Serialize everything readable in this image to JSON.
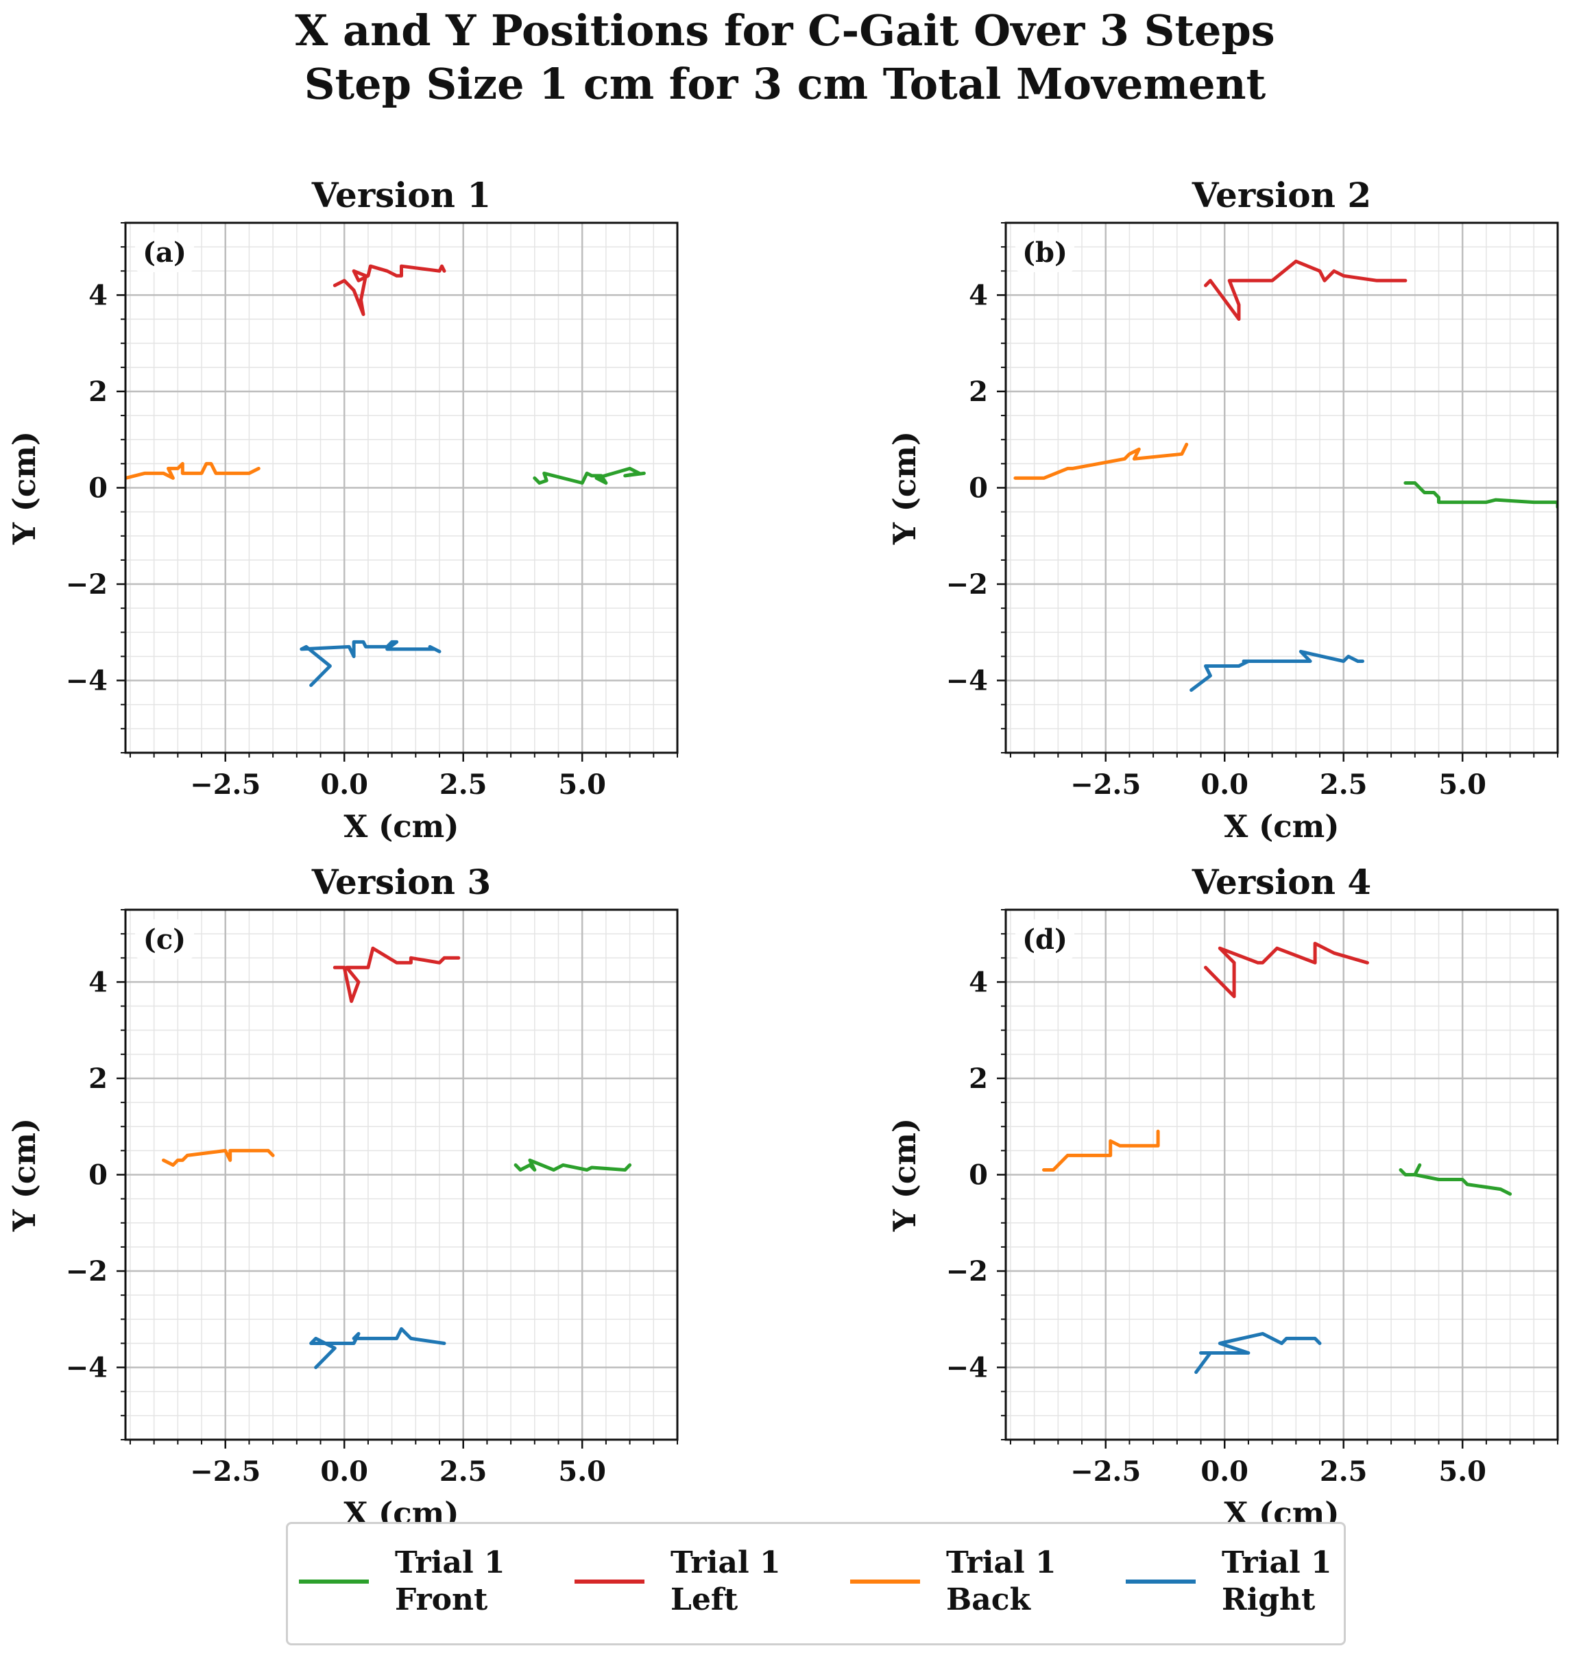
{
  "figure": {
    "title_line1": "X and Y Positions for C-Gait Over 3 Steps",
    "title_line2": "Step Size 1 cm for 3 cm Total Movement"
  },
  "colors": {
    "front": "#2ca02c",
    "left": "#d62728",
    "back": "#ff7f0e",
    "right": "#1f77b4"
  },
  "legend": {
    "placement": "bottom-center",
    "items": [
      {
        "line1": "Trial 1",
        "line2": "Front",
        "color": "#2ca02c"
      },
      {
        "line1": "Trial 1",
        "line2": "Left",
        "color": "#d62728"
      },
      {
        "line1": "Trial 1",
        "line2": "Back",
        "color": "#ff7f0e"
      },
      {
        "line1": "Trial 1",
        "line2": "Right",
        "color": "#1f77b4"
      }
    ]
  },
  "chart_data": [
    {
      "type": "line",
      "title": "Version 1",
      "panel_label": "(a)",
      "xlabel": "X (cm)",
      "ylabel": "Y (cm)",
      "xlim": [
        -4.6,
        7.0
      ],
      "ylim": [
        -5.5,
        5.5
      ],
      "xticks": [
        -2.5,
        0.0,
        2.5,
        5.0
      ],
      "xtick_labels": [
        "−2.5",
        "0.0",
        "2.5",
        "5.0"
      ],
      "yticks": [
        -4,
        -2,
        0,
        2,
        4
      ],
      "ytick_labels": [
        "−4",
        "−2",
        "0",
        "2",
        "4"
      ],
      "grid": true,
      "series": [
        {
          "key": "front",
          "x": [
            4.0,
            4.1,
            4.25,
            4.2,
            5.0,
            5.1,
            5.2,
            5.4,
            5.5,
            5.3,
            6.0,
            6.2,
            5.9,
            6.3
          ],
          "y": [
            0.2,
            0.1,
            0.15,
            0.3,
            0.1,
            0.3,
            0.25,
            0.25,
            0.1,
            0.2,
            0.4,
            0.3,
            0.25,
            0.3
          ]
        },
        {
          "key": "left",
          "x": [
            -0.2,
            0.0,
            0.2,
            0.4,
            0.35,
            0.45,
            0.2,
            0.3,
            0.5,
            0.55,
            0.9,
            1.1,
            1.2,
            1.2,
            2.0,
            2.05,
            2.1
          ],
          "y": [
            4.2,
            4.3,
            4.1,
            3.6,
            3.9,
            4.4,
            4.5,
            4.3,
            4.4,
            4.6,
            4.5,
            4.4,
            4.4,
            4.6,
            4.5,
            4.6,
            4.5
          ]
        },
        {
          "key": "back",
          "x": [
            -4.6,
            -4.2,
            -3.8,
            -3.6,
            -3.7,
            -3.5,
            -3.4,
            -3.4,
            -3.0,
            -2.9,
            -2.8,
            -2.7,
            -2.0,
            -1.8
          ],
          "y": [
            0.2,
            0.3,
            0.3,
            0.2,
            0.4,
            0.4,
            0.5,
            0.3,
            0.3,
            0.5,
            0.5,
            0.3,
            0.3,
            0.4
          ]
        },
        {
          "key": "right",
          "x": [
            -0.7,
            -0.3,
            -0.8,
            -0.9,
            0.1,
            0.2,
            0.2,
            0.4,
            0.45,
            0.9,
            1.0,
            1.1,
            0.9,
            1.9,
            1.8,
            2.0
          ],
          "y": [
            -4.1,
            -3.7,
            -3.3,
            -3.35,
            -3.3,
            -3.5,
            -3.2,
            -3.2,
            -3.3,
            -3.3,
            -3.2,
            -3.2,
            -3.35,
            -3.35,
            -3.3,
            -3.4
          ]
        }
      ]
    },
    {
      "type": "line",
      "title": "Version 2",
      "panel_label": "(b)",
      "xlabel": "X (cm)",
      "ylabel": "Y (cm)",
      "xlim": [
        -4.6,
        7.0
      ],
      "ylim": [
        -5.5,
        5.5
      ],
      "xticks": [
        -2.5,
        0.0,
        2.5,
        5.0
      ],
      "xtick_labels": [
        "−2.5",
        "0.0",
        "2.5",
        "5.0"
      ],
      "yticks": [
        -4,
        -2,
        0,
        2,
        4
      ],
      "ytick_labels": [
        "−4",
        "−2",
        "0",
        "2",
        "4"
      ],
      "grid": true,
      "series": [
        {
          "key": "front",
          "x": [
            3.8,
            4.0,
            4.2,
            4.4,
            4.5,
            4.5,
            4.8,
            5.5,
            5.7,
            6.5,
            7.0,
            7.0
          ],
          "y": [
            0.1,
            0.1,
            -0.1,
            -0.1,
            -0.2,
            -0.3,
            -0.3,
            -0.3,
            -0.25,
            -0.3,
            -0.3,
            -0.4
          ]
        },
        {
          "key": "left",
          "x": [
            -0.4,
            -0.3,
            0.3,
            0.3,
            0.1,
            0.5,
            0.9,
            1.0,
            1.5,
            2.0,
            2.1,
            2.3,
            2.5,
            3.2,
            3.8
          ],
          "y": [
            4.2,
            4.3,
            3.5,
            3.8,
            4.3,
            4.3,
            4.3,
            4.3,
            4.7,
            4.5,
            4.3,
            4.5,
            4.4,
            4.3,
            4.3
          ]
        },
        {
          "key": "back",
          "x": [
            -4.4,
            -3.8,
            -3.3,
            -3.2,
            -2.1,
            -2.0,
            -1.8,
            -1.9,
            -0.9,
            -0.8
          ],
          "y": [
            0.2,
            0.2,
            0.4,
            0.4,
            0.6,
            0.7,
            0.8,
            0.6,
            0.7,
            0.9
          ]
        },
        {
          "key": "right",
          "x": [
            -0.7,
            -0.3,
            -0.4,
            0.3,
            0.5,
            0.4,
            1.8,
            1.6,
            2.5,
            2.6,
            2.8,
            2.9
          ],
          "y": [
            -4.2,
            -3.9,
            -3.7,
            -3.7,
            -3.6,
            -3.6,
            -3.6,
            -3.4,
            -3.6,
            -3.5,
            -3.6,
            -3.6
          ]
        }
      ]
    },
    {
      "type": "line",
      "title": "Version 3",
      "panel_label": "(c)",
      "xlabel": "X (cm)",
      "ylabel": "Y (cm)",
      "xlim": [
        -4.6,
        7.0
      ],
      "ylim": [
        -5.5,
        5.5
      ],
      "xticks": [
        -2.5,
        0.0,
        2.5,
        5.0
      ],
      "xtick_labels": [
        "−2.5",
        "0.0",
        "2.5",
        "5.0"
      ],
      "yticks": [
        -4,
        -2,
        0,
        2,
        4
      ],
      "ytick_labels": [
        "−4",
        "−2",
        "0",
        "2",
        "4"
      ],
      "grid": true,
      "series": [
        {
          "key": "front",
          "x": [
            3.6,
            3.7,
            3.9,
            4.0,
            3.9,
            4.4,
            4.6,
            5.1,
            5.2,
            5.9,
            6.0
          ],
          "y": [
            0.2,
            0.1,
            0.2,
            0.1,
            0.3,
            0.1,
            0.2,
            0.1,
            0.15,
            0.1,
            0.2
          ]
        },
        {
          "key": "left",
          "x": [
            -0.2,
            0.0,
            0.15,
            0.3,
            0.05,
            0.5,
            0.6,
            1.1,
            1.4,
            1.4,
            2.0,
            2.1,
            2.4
          ],
          "y": [
            4.3,
            4.3,
            3.6,
            4.0,
            4.3,
            4.3,
            4.7,
            4.4,
            4.4,
            4.5,
            4.4,
            4.5,
            4.5
          ]
        },
        {
          "key": "back",
          "x": [
            -3.8,
            -3.6,
            -3.5,
            -3.4,
            -3.3,
            -2.5,
            -2.4,
            -2.4,
            -1.6,
            -1.5
          ],
          "y": [
            0.3,
            0.2,
            0.3,
            0.3,
            0.4,
            0.5,
            0.3,
            0.5,
            0.5,
            0.4
          ]
        },
        {
          "key": "right",
          "x": [
            -0.6,
            -0.2,
            -0.6,
            -0.7,
            0.2,
            0.3,
            0.2,
            1.1,
            1.2,
            1.4,
            2.1
          ],
          "y": [
            -4.0,
            -3.6,
            -3.4,
            -3.5,
            -3.5,
            -3.3,
            -3.4,
            -3.4,
            -3.2,
            -3.4,
            -3.5
          ]
        }
      ]
    },
    {
      "type": "line",
      "title": "Version 4",
      "panel_label": "(d)",
      "xlabel": "X (cm)",
      "ylabel": "Y (cm)",
      "xlim": [
        -4.6,
        7.0
      ],
      "ylim": [
        -5.5,
        5.5
      ],
      "xticks": [
        -2.5,
        0.0,
        2.5,
        5.0
      ],
      "xtick_labels": [
        "−2.5",
        "0.0",
        "2.5",
        "5.0"
      ],
      "yticks": [
        -4,
        -2,
        0,
        2,
        4
      ],
      "ytick_labels": [
        "−4",
        "−2",
        "0",
        "2",
        "4"
      ],
      "grid": true,
      "series": [
        {
          "key": "front",
          "x": [
            3.7,
            3.8,
            4.0,
            4.1,
            4.0,
            4.5,
            5.0,
            5.1,
            5.8,
            6.0
          ],
          "y": [
            0.1,
            0.0,
            0.0,
            0.2,
            0.0,
            -0.1,
            -0.1,
            -0.2,
            -0.3,
            -0.4
          ]
        },
        {
          "key": "left",
          "x": [
            -0.4,
            -0.3,
            0.2,
            0.2,
            -0.1,
            0.7,
            0.8,
            1.1,
            1.9,
            1.9,
            2.3,
            3.0
          ],
          "y": [
            4.3,
            4.2,
            3.7,
            4.4,
            4.7,
            4.4,
            4.4,
            4.7,
            4.4,
            4.8,
            4.6,
            4.4
          ]
        },
        {
          "key": "back",
          "x": [
            -3.8,
            -3.6,
            -3.3,
            -2.4,
            -2.4,
            -2.2,
            -1.4,
            -1.4
          ],
          "y": [
            0.1,
            0.1,
            0.4,
            0.4,
            0.7,
            0.6,
            0.6,
            0.9
          ]
        },
        {
          "key": "right",
          "x": [
            -0.6,
            -0.3,
            -0.5,
            0.5,
            -0.1,
            0.8,
            1.2,
            1.3,
            1.9,
            2.0
          ],
          "y": [
            -4.1,
            -3.7,
            -3.7,
            -3.7,
            -3.5,
            -3.3,
            -3.5,
            -3.4,
            -3.4,
            -3.5
          ]
        }
      ]
    }
  ]
}
